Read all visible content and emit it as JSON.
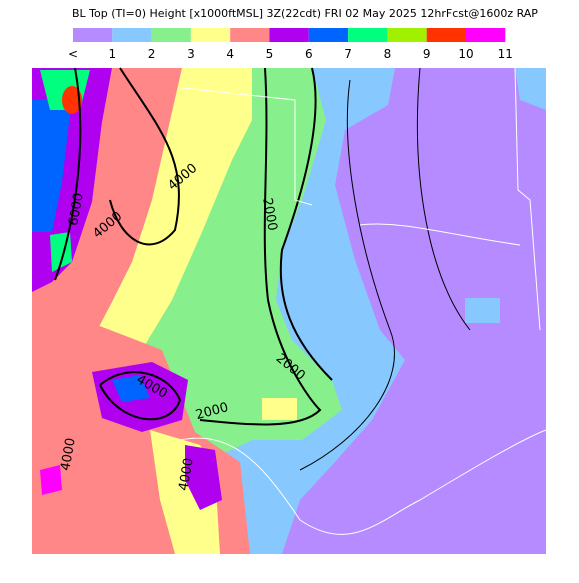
{
  "header": {
    "title": "BL Top (TI=0) Height [x1000ftMSL] 3Z(22cdt) FRI 02 May 2025 12hrFcst@1600z RAP"
  },
  "legend": {
    "labels": [
      "<",
      "1",
      "2",
      "3",
      "4",
      "5",
      "6",
      "7",
      "8",
      "9",
      "10",
      "11"
    ],
    "colors": [
      "#b58bff",
      "#87c8ff",
      "#87f08c",
      "#ffff8c",
      "#ff8787",
      "#b000f0",
      "#0064ff",
      "#00ff7f",
      "#a0f000",
      "#ff3200",
      "#ff00ff"
    ]
  },
  "contour_labels": [
    "6000",
    "4000",
    "4000",
    "2000",
    "2000",
    "2000",
    "4000",
    "4000",
    "4000"
  ]
}
